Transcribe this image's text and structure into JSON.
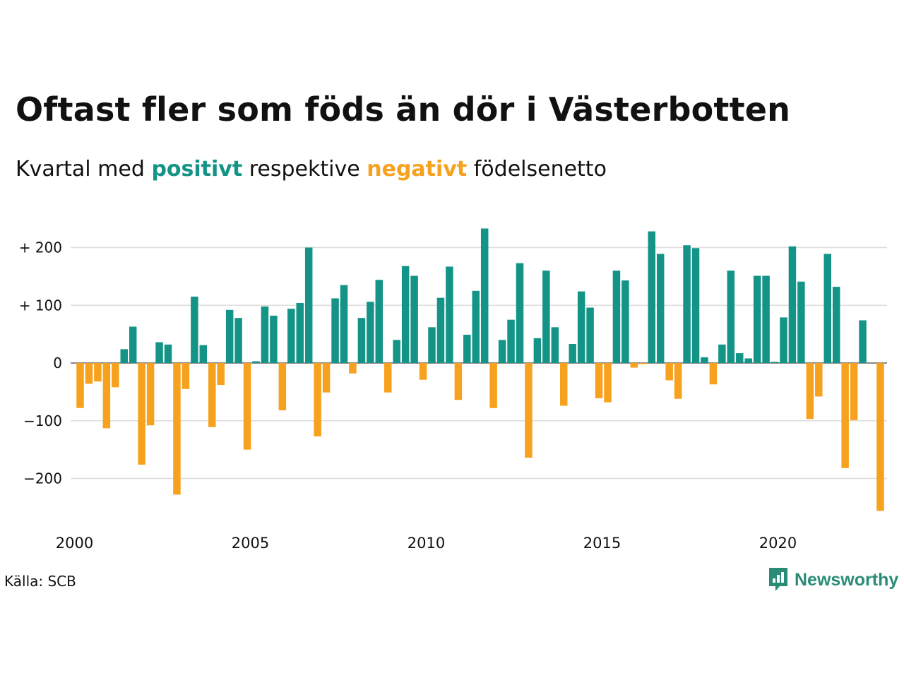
{
  "title": "Oftast fler som föds än dör i Västerbotten",
  "subtitle": {
    "before": "Kvartal med",
    "positive": "positivt",
    "middle": "respektive",
    "negative": "negativt",
    "after": "födelsenetto"
  },
  "source": "Källa: SCB",
  "brand": {
    "name": "Newsworthy",
    "icon": "newsworthy-logo-icon"
  },
  "colors": {
    "positive": "#149486",
    "negative": "#f7a21e",
    "grid": "#dddddd",
    "brand": "#2a8c77"
  },
  "chart_data": {
    "type": "bar",
    "title": "",
    "xlabel": "",
    "ylabel": "",
    "ylim": [
      -260,
      240
    ],
    "y_ticks": [
      {
        "value": 200,
        "label": "+ 200"
      },
      {
        "value": 100,
        "label": "+ 100"
      },
      {
        "value": 0,
        "label": "0"
      },
      {
        "value": -100,
        "label": "−100"
      },
      {
        "value": -200,
        "label": "−200"
      }
    ],
    "x_ticks": [
      {
        "quarter": "2000Q1",
        "label": "2000"
      },
      {
        "quarter": "2005Q1",
        "label": "2005"
      },
      {
        "quarter": "2010Q1",
        "label": "2010"
      },
      {
        "quarter": "2015Q1",
        "label": "2015"
      },
      {
        "quarter": "2020Q1",
        "label": "2020"
      }
    ],
    "grid": true,
    "categories": [
      "2000Q1",
      "2000Q2",
      "2000Q3",
      "2000Q4",
      "2001Q1",
      "2001Q2",
      "2001Q3",
      "2001Q4",
      "2002Q1",
      "2002Q2",
      "2002Q3",
      "2002Q4",
      "2003Q1",
      "2003Q2",
      "2003Q3",
      "2003Q4",
      "2004Q1",
      "2004Q2",
      "2004Q3",
      "2004Q4",
      "2005Q1",
      "2005Q2",
      "2005Q3",
      "2005Q4",
      "2006Q1",
      "2006Q2",
      "2006Q3",
      "2006Q4",
      "2007Q1",
      "2007Q2",
      "2007Q3",
      "2007Q4",
      "2008Q1",
      "2008Q2",
      "2008Q3",
      "2008Q4",
      "2009Q1",
      "2009Q2",
      "2009Q3",
      "2009Q4",
      "2010Q1",
      "2010Q2",
      "2010Q3",
      "2010Q4",
      "2011Q1",
      "2011Q2",
      "2011Q3",
      "2011Q4",
      "2012Q1",
      "2012Q2",
      "2012Q3",
      "2012Q4",
      "2013Q1",
      "2013Q2",
      "2013Q3",
      "2013Q4",
      "2014Q1",
      "2014Q2",
      "2014Q3",
      "2014Q4",
      "2015Q1",
      "2015Q2",
      "2015Q3",
      "2015Q4",
      "2016Q1",
      "2016Q2",
      "2016Q3",
      "2016Q4",
      "2017Q1",
      "2017Q2",
      "2017Q3",
      "2017Q4",
      "2018Q1",
      "2018Q2",
      "2018Q3",
      "2018Q4",
      "2019Q1",
      "2019Q2",
      "2019Q3",
      "2019Q4",
      "2020Q1",
      "2020Q2",
      "2020Q3",
      "2020Q4",
      "2021Q1",
      "2021Q2",
      "2021Q3",
      "2021Q4",
      "2022Q1",
      "2022Q2",
      "2022Q3",
      "2022Q4",
      "2023Q1"
    ],
    "values": [
      -78,
      -36,
      -32,
      -113,
      -42,
      24,
      63,
      -176,
      -108,
      36,
      32,
      -228,
      -45,
      115,
      31,
      -111,
      -38,
      92,
      78,
      -150,
      3,
      98,
      82,
      -82,
      94,
      104,
      200,
      -127,
      -51,
      112,
      135,
      -18,
      78,
      106,
      144,
      -51,
      40,
      168,
      151,
      -29,
      62,
      113,
      167,
      -64,
      49,
      125,
      233,
      -78,
      40,
      75,
      173,
      -164,
      43,
      160,
      62,
      -74,
      33,
      124,
      96,
      -61,
      -68,
      160,
      143,
      -8,
      -2,
      228,
      189,
      -30,
      -62,
      204,
      199,
      10,
      -37,
      32,
      160,
      17,
      8,
      151,
      151,
      2,
      79,
      202,
      141,
      -97,
      -58,
      189,
      132,
      -182,
      -99,
      74,
      0,
      -256,
      0
    ]
  }
}
